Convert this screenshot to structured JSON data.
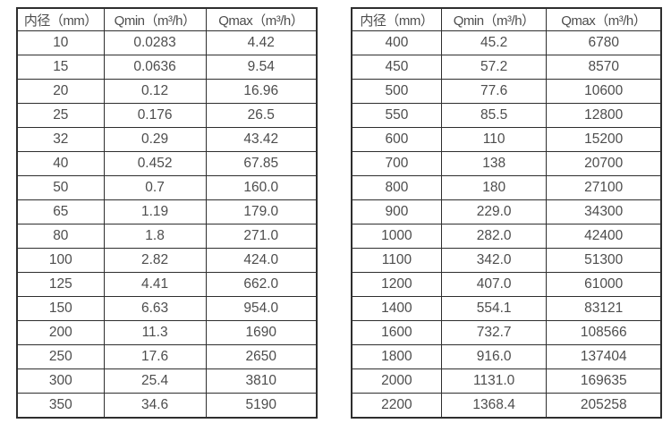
{
  "colors": {
    "background": "#ffffff",
    "border": "#2e2e2e",
    "text": "#4d4d4d"
  },
  "tables": [
    {
      "name": "flow-rate-table-dn10-dn350",
      "headers": [
        "内径（mm）",
        "Qmin（m³/h）",
        "Qmax（m³/h）"
      ],
      "rows": [
        [
          "10",
          "0.0283",
          "4.42"
        ],
        [
          "15",
          "0.0636",
          "9.54"
        ],
        [
          "20",
          "0.12",
          "16.96"
        ],
        [
          "25",
          "0.176",
          "26.5"
        ],
        [
          "32",
          "0.29",
          "43.42"
        ],
        [
          "40",
          "0.452",
          "67.85"
        ],
        [
          "50",
          "0.7",
          "160.0"
        ],
        [
          "65",
          "1.19",
          "179.0"
        ],
        [
          "80",
          "1.8",
          "271.0"
        ],
        [
          "100",
          "2.82",
          "424.0"
        ],
        [
          "125",
          "4.41",
          "662.0"
        ],
        [
          "150",
          "6.63",
          "954.0"
        ],
        [
          "200",
          "11.3",
          "1690"
        ],
        [
          "250",
          "17.6",
          "2650"
        ],
        [
          "300",
          "25.4",
          "3810"
        ],
        [
          "350",
          "34.6",
          "5190"
        ]
      ]
    },
    {
      "name": "flow-rate-table-dn400-dn2200",
      "headers": [
        "内径（mm）",
        "Qmin（m³/h）",
        "Qmax（m³/h）"
      ],
      "rows": [
        [
          "400",
          "45.2",
          "6780"
        ],
        [
          "450",
          "57.2",
          "8570"
        ],
        [
          "500",
          "77.6",
          "10600"
        ],
        [
          "550",
          "85.5",
          "12800"
        ],
        [
          "600",
          "110",
          "15200"
        ],
        [
          "700",
          "138",
          "20700"
        ],
        [
          "800",
          "180",
          "27100"
        ],
        [
          "900",
          "229.0",
          "34300"
        ],
        [
          "1000",
          "282.0",
          "42400"
        ],
        [
          "1100",
          "342.0",
          "51300"
        ],
        [
          "1200",
          "407.0",
          "61000"
        ],
        [
          "1400",
          "554.1",
          "83121"
        ],
        [
          "1600",
          "732.7",
          "108566"
        ],
        [
          "1800",
          "916.0",
          "137404"
        ],
        [
          "2000",
          "1131.0",
          "169635"
        ],
        [
          "2200",
          "1368.4",
          "205258"
        ]
      ]
    }
  ]
}
